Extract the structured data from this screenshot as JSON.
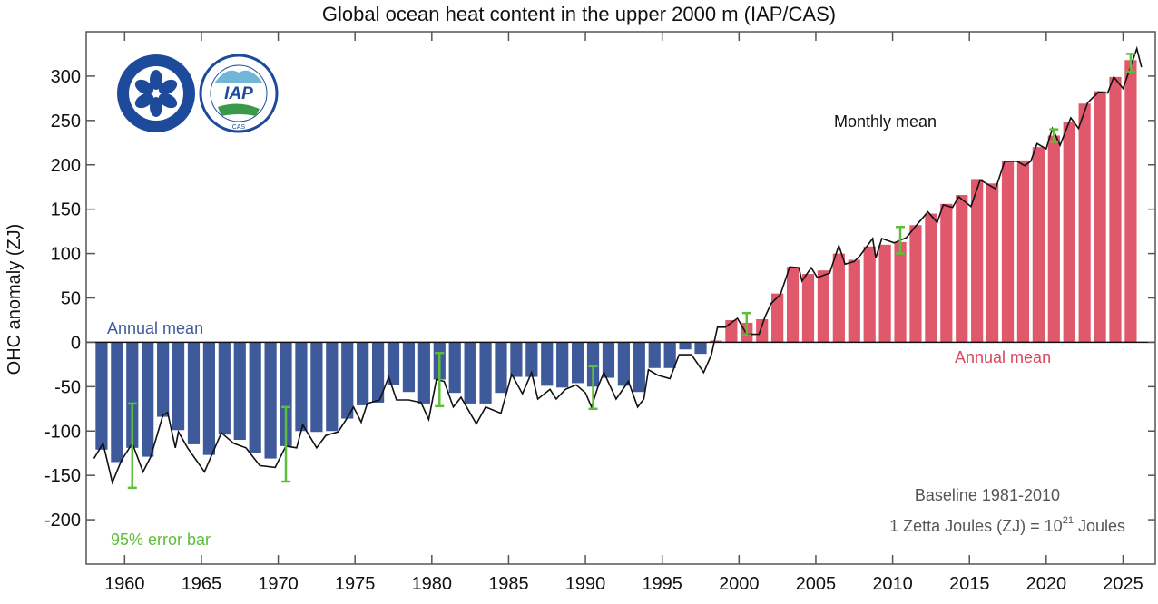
{
  "chart_data": {
    "type": "bar",
    "title": "Global ocean heat content in the upper 2000 m (IAP/CAS)",
    "xlabel": "",
    "ylabel": "OHC anomaly (ZJ)",
    "xlim": [
      1957.5,
      2027.1
    ],
    "ylim": [
      -250,
      350
    ],
    "grid": false,
    "x_ticks": [
      "1960",
      "1965",
      "1970",
      "1975",
      "1980",
      "1985",
      "1990",
      "1995",
      "2000",
      "2005",
      "2010",
      "2015",
      "2020",
      "2025"
    ],
    "y_ticks": [
      "-200",
      "-150",
      "-100",
      "-50",
      "0",
      "50",
      "100",
      "150",
      "200",
      "250",
      "300"
    ],
    "colors": {
      "negative": "#3f5a9b",
      "positive": "#e0586c",
      "error_bar": "#5ebd3a",
      "monthly": "#111111"
    },
    "annual_mean": {
      "name": "Annual mean",
      "years": [
        1958,
        1959,
        1960,
        1961,
        1962,
        1963,
        1964,
        1965,
        1966,
        1967,
        1968,
        1969,
        1970,
        1971,
        1972,
        1973,
        1974,
        1975,
        1976,
        1977,
        1978,
        1979,
        1980,
        1981,
        1982,
        1983,
        1984,
        1985,
        1986,
        1987,
        1988,
        1989,
        1990,
        1991,
        1992,
        1993,
        1994,
        1995,
        1996,
        1997,
        1998,
        1999,
        2000,
        2001,
        2002,
        2003,
        2004,
        2005,
        2006,
        2007,
        2008,
        2009,
        2010,
        2011,
        2012,
        2013,
        2014,
        2015,
        2016,
        2017,
        2018,
        2019,
        2020,
        2021,
        2022,
        2023,
        2024,
        2025
      ],
      "values": [
        -121,
        -135,
        -119,
        -129,
        -84,
        -99,
        -115,
        -127,
        -104,
        -110,
        -125,
        -131,
        -117,
        -100,
        -101,
        -100,
        -86,
        -71,
        -68,
        -48,
        -56,
        -69,
        -42,
        -57,
        -69,
        -69,
        -57,
        -39,
        -39,
        -49,
        -51,
        -46,
        -50,
        -40,
        -49,
        -56,
        -29,
        -29,
        -8,
        -13,
        2,
        25,
        22,
        26,
        55,
        85,
        77,
        81,
        100,
        93,
        108,
        110,
        113,
        132,
        145,
        156,
        166,
        184,
        179,
        204,
        205,
        220,
        233,
        248,
        269,
        283,
        299,
        318
      ]
    },
    "monthly_mean": {
      "name": "Monthly mean",
      "x": [
        1958.0,
        1958.6,
        1959.2,
        1959.8,
        1960.5,
        1961.2,
        1961.7,
        1962.5,
        1962.8,
        1963.3,
        1963.5,
        1964.1,
        1965.2,
        1966.3,
        1967.1,
        1967.9,
        1968.8,
        1969.8,
        1970.5,
        1971.2,
        1971.6,
        1972.5,
        1973.1,
        1973.9,
        1974.5,
        1974.9,
        1975.4,
        1975.8,
        1976.6,
        1977.2,
        1977.7,
        1978.5,
        1979.3,
        1979.8,
        1980.3,
        1980.8,
        1981.4,
        1981.9,
        1982.9,
        1983.5,
        1984.5,
        1985.2,
        1985.9,
        1986.5,
        1986.9,
        1987.7,
        1988.1,
        1988.7,
        1989.4,
        1990.0,
        1990.4,
        1990.8,
        1991.2,
        1992.0,
        1992.8,
        1993.4,
        1993.8,
        1994.1,
        1994.7,
        1995.5,
        1996.1,
        1996.9,
        1997.7,
        1998.2,
        1998.6,
        1999.1,
        1999.9,
        2000.5,
        2001.3,
        2001.7,
        2002.1,
        2002.7,
        2003.3,
        2003.9,
        2004.1,
        2004.7,
        2005.1,
        2005.9,
        2006.5,
        2006.9,
        2007.5,
        2007.9,
        2008.7,
        2008.9,
        2009.3,
        2010.1,
        2010.9,
        2011.7,
        2012.3,
        2012.9,
        2013.3,
        2013.9,
        2014.3,
        2015.1,
        2015.7,
        2016.7,
        2017.3,
        2018.1,
        2018.6,
        2019.0,
        2019.4,
        2020.0,
        2020.4,
        2020.9,
        2021.6,
        2022.1,
        2022.7,
        2023.4,
        2024.0,
        2024.4,
        2025.0,
        2025.9,
        2026.2
      ],
      "y": [
        -131,
        -114,
        -158,
        -133,
        -114,
        -146,
        -129,
        -82,
        -79,
        -119,
        -101,
        -119,
        -146,
        -102,
        -114,
        -119,
        -139,
        -141,
        -117,
        -119,
        -93,
        -119,
        -105,
        -101,
        -85,
        -73,
        -90,
        -69,
        -65,
        -39,
        -65,
        -65,
        -68,
        -87,
        -42,
        -44,
        -73,
        -62,
        -92,
        -73,
        -80,
        -36,
        -58,
        -34,
        -64,
        -53,
        -64,
        -53,
        -48,
        -57,
        -73,
        -51,
        -34,
        -64,
        -44,
        -73,
        -64,
        -31,
        -37,
        -41,
        -14,
        -14,
        -34,
        -14,
        17,
        17,
        27,
        9,
        9,
        29,
        44,
        54,
        85,
        84,
        69,
        84,
        73,
        78,
        109,
        88,
        91,
        98,
        117,
        95,
        117,
        112,
        118,
        135,
        147,
        135,
        155,
        152,
        164,
        153,
        183,
        173,
        204,
        204,
        199,
        204,
        224,
        218,
        241,
        222,
        253,
        241,
        270,
        282,
        281,
        299,
        286,
        331,
        310
      ]
    },
    "error_bars": {
      "label": "95% error bar",
      "x": [
        1960.5,
        1970.5,
        1980.5,
        1990.5,
        2000.5,
        2010.5,
        2020.5,
        2025.5
      ],
      "low": [
        -164,
        -157,
        -72,
        -75,
        8,
        100,
        226,
        305
      ],
      "high": [
        -69,
        -73,
        -12,
        -27,
        33,
        130,
        240,
        325
      ]
    },
    "annotations": {
      "annual_mean_left": "Annual mean",
      "annual_mean_right": "Annual mean",
      "monthly_mean": "Monthly mean",
      "error_bar": "95% error bar",
      "baseline": "Baseline 1981-2010",
      "units_prefix": "1 Zetta Joules (ZJ) = 10",
      "units_exp": "21",
      "units_suffix": " Joules"
    }
  },
  "logos": {
    "cas": {
      "name": "Chinese Academy of Sciences",
      "color": "#1e4a9c"
    },
    "iap": {
      "name": "IAP",
      "sub": "CAS",
      "color": "#1e4a9c"
    }
  }
}
